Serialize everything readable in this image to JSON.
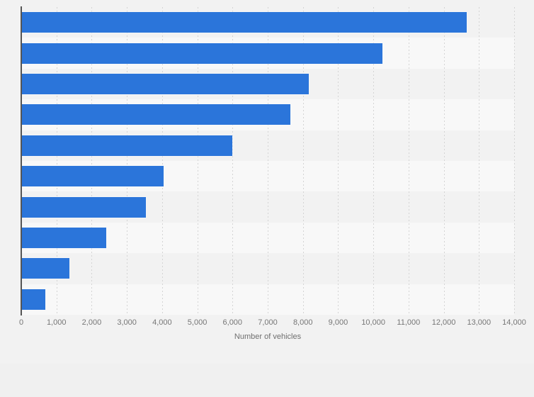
{
  "chart_data": {
    "type": "bar",
    "orientation": "horizontal",
    "title": "",
    "xlabel": "Number of vehicles",
    "ylabel": "",
    "categories": [
      "",
      "",
      "",
      "",
      "",
      "",
      "",
      "",
      "",
      ""
    ],
    "values": [
      12650,
      10250,
      8170,
      7640,
      6000,
      4050,
      3540,
      2420,
      1360,
      690
    ],
    "xlim": [
      0,
      14000
    ],
    "x_ticks": [
      0,
      1000,
      2000,
      3000,
      4000,
      5000,
      6000,
      7000,
      8000,
      9000,
      10000,
      11000,
      12000,
      13000,
      14000
    ],
    "x_tick_labels": [
      "0",
      "1,000",
      "2,000",
      "3,000",
      "4,000",
      "5,000",
      "6,000",
      "7,000",
      "8,000",
      "9,000",
      "10,000",
      "11,000",
      "12,000",
      "13,000",
      "14,000"
    ],
    "grid": "vertical-dashed",
    "legend": "none",
    "colors": {
      "bar": "#2b75da",
      "page_bg": "#f2f2f2",
      "row_stripe": "#f8f8f8",
      "axis_line": "#555555",
      "gridline": "#d4d4d4",
      "tick_text": "#767676",
      "axis_title_text": "#6f6f6f"
    }
  }
}
